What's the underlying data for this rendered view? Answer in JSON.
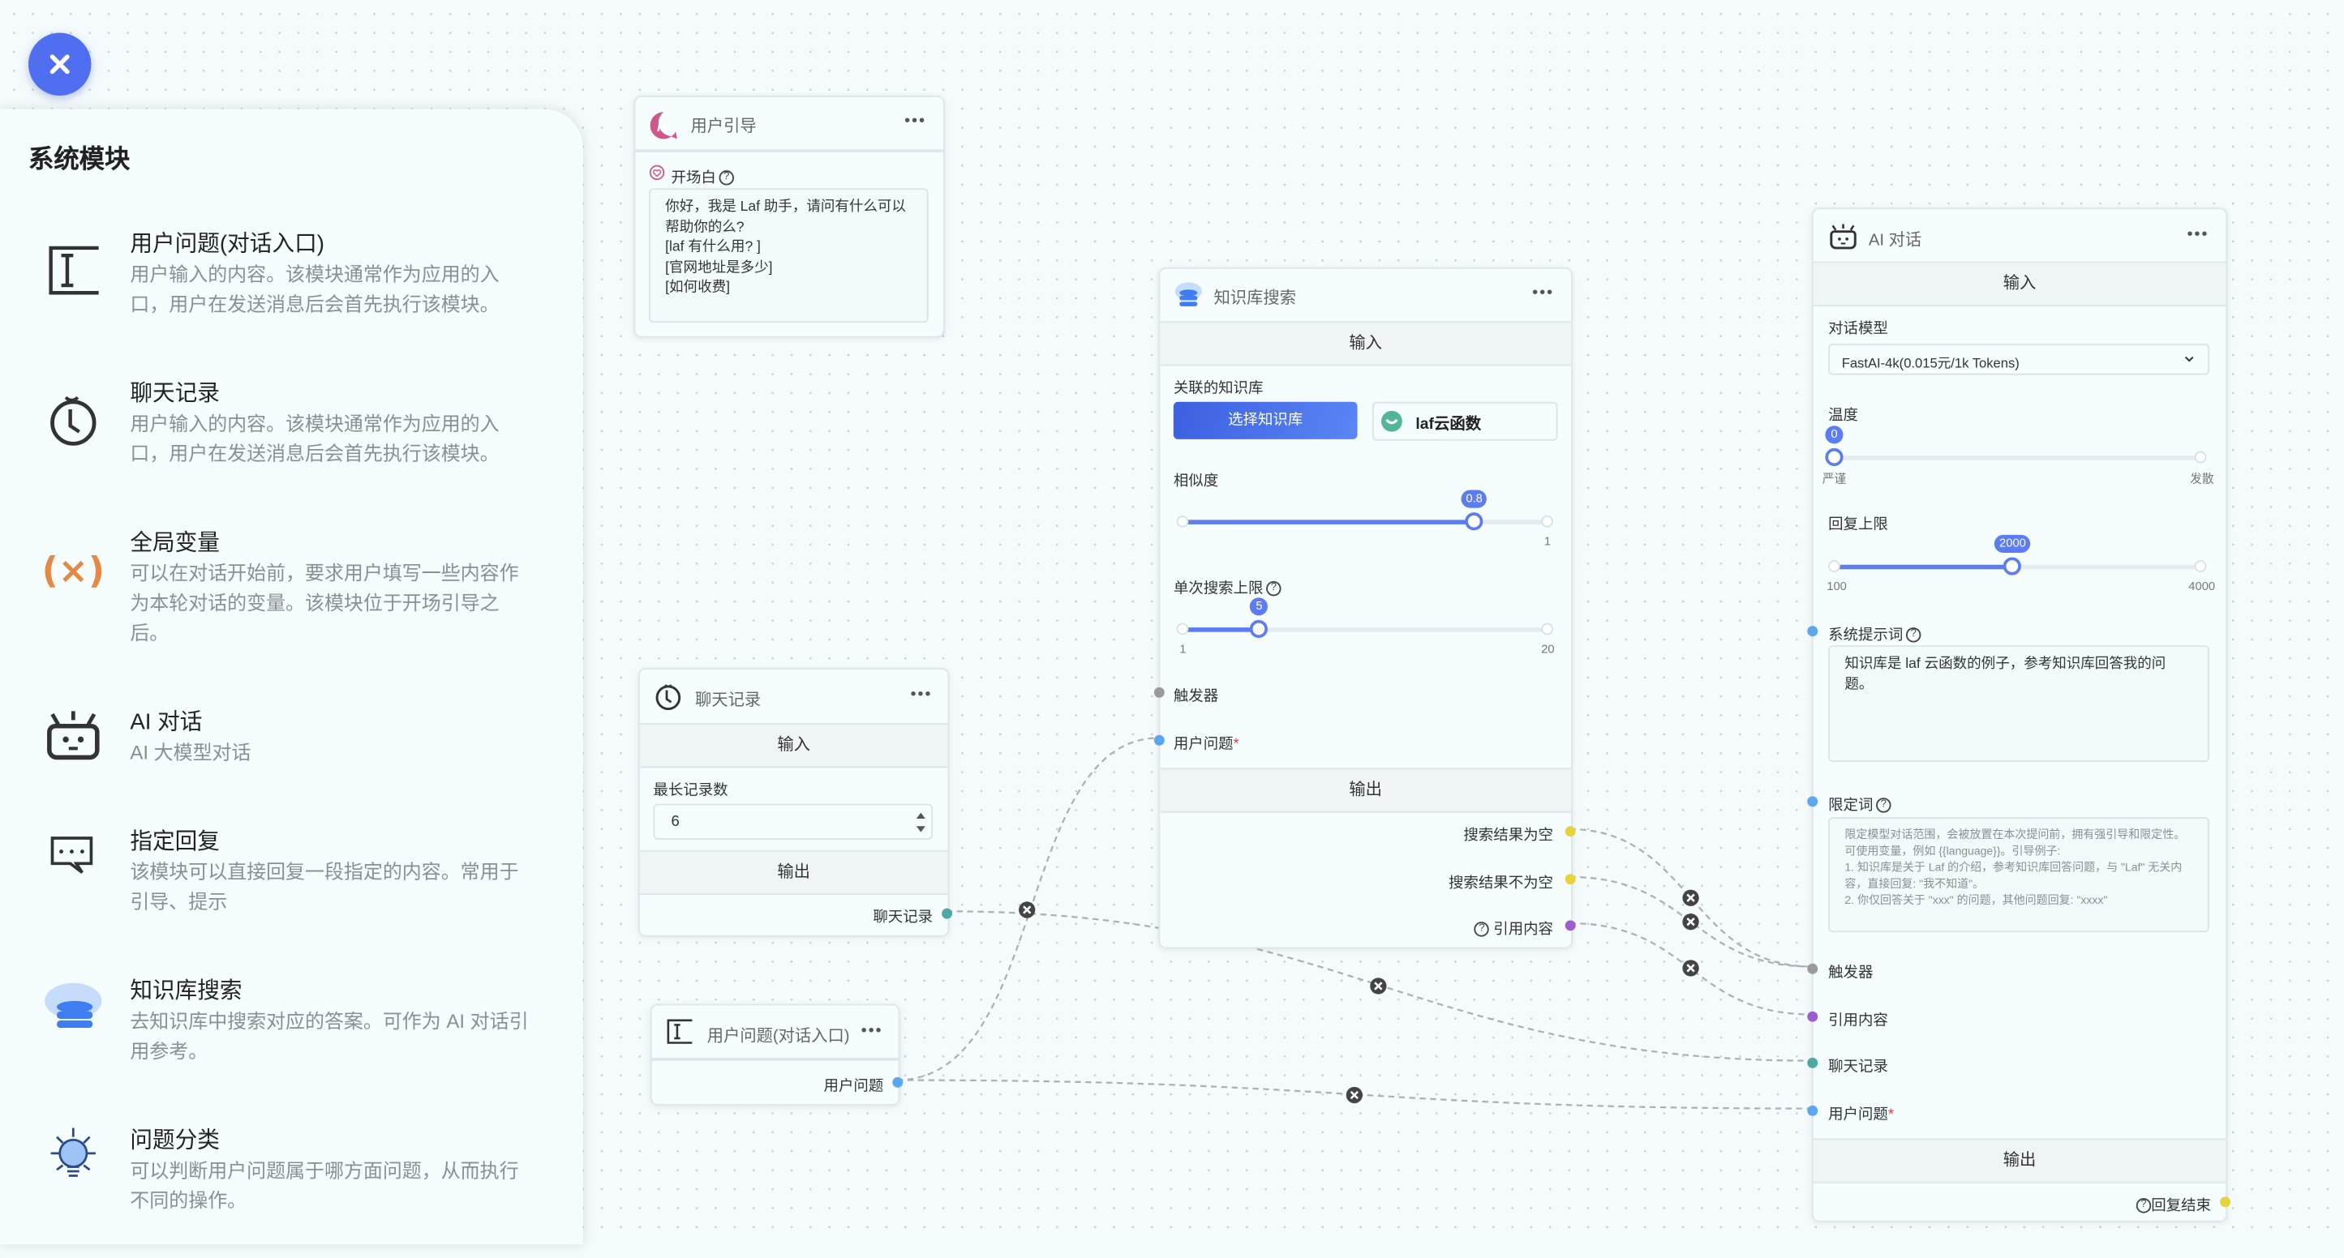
{
  "colors": {
    "accent": "#4f6ff0",
    "handle_trigger": "#9a9a9a",
    "handle_user_question": "#5aa6ef",
    "handle_chat_history": "#4ca9a2",
    "handle_quote": "#9d5ccf",
    "handle_result": "#e7d33b",
    "edge": "#a8b0b4"
  },
  "close_button": {
    "icon": "close-icon"
  },
  "sidebar": {
    "title": "系统模块",
    "items": [
      {
        "icon": "text-cursor-icon",
        "name": "用户问题(对话入口)",
        "desc": "用户输入的内容。该模块通常作为应用的入口，用户在发送消息后会首先执行该模块。"
      },
      {
        "icon": "clock-icon",
        "name": "聊天记录",
        "desc": "用户输入的内容。该模块通常作为应用的入口，用户在发送消息后会首先执行该模块。"
      },
      {
        "icon": "variable-icon",
        "name": "全局变量",
        "desc": "可以在对话开始前，要求用户填写一些内容作为本轮对话的变量。该模块位于开场引导之后。"
      },
      {
        "icon": "robot-icon",
        "name": "AI 对话",
        "desc": "AI 大模型对话"
      },
      {
        "icon": "chat-bubble-icon",
        "name": "指定回复",
        "desc": "该模块可以直接回复一段指定的内容。常用于引导、提示"
      },
      {
        "icon": "cloud-database-icon",
        "name": "知识库搜索",
        "desc": "去知识库中搜索对应的答案。可作为 AI 对话引用参考。"
      },
      {
        "icon": "lightbulb-icon",
        "name": "问题分类",
        "desc": "可以判断用户问题属于哪方面问题，从而执行不同的操作。"
      }
    ]
  },
  "nodes": {
    "guide": {
      "title": "用户引导",
      "more": "•••",
      "field_label": "开场白",
      "help": "?",
      "welcome_text": "你好，我是 Laf 助手，请问有什么可以帮助你的么?\n[laf 有什么用? ]\n[官网地址是多少]\n[如何收费]"
    },
    "history": {
      "title": "聊天记录",
      "more": "•••",
      "input_band": "输入",
      "max_label": "最长记录数",
      "max_value": "6",
      "output_band": "输出",
      "output_label": "聊天记录"
    },
    "user_question": {
      "title": "用户问题(对话入口)",
      "more": "•••",
      "output_label": "用户问题"
    },
    "kb": {
      "title": "知识库搜索",
      "more": "•••",
      "input_band": "输入",
      "linked_label": "关联的知识库",
      "select_button": "选择知识库",
      "selected_kb": "laf云函数",
      "similarity_label": "相似度",
      "similarity_value": "0.8",
      "similarity_max": "1",
      "similarity_fraction": 0.8,
      "limit_label": "单次搜索上限",
      "limit_value": "5",
      "limit_min": "1",
      "limit_max": "20",
      "help": "?",
      "trigger_label": "触发器",
      "user_question_label": "用户问题",
      "required": "*",
      "output_band": "输出",
      "outputs": [
        "搜索结果为空",
        "搜索结果不为空",
        "引用内容"
      ]
    },
    "ai": {
      "title": "AI 对话",
      "more": "•••",
      "input_band": "输入",
      "model_label": "对话模型",
      "model_value": "FastAI-4k(0.015元/1k Tokens)",
      "temp_label": "温度",
      "temp_value": "0",
      "temp_min_label": "严谨",
      "temp_max_label": "发散",
      "temp_fraction": 0,
      "max_label": "回复上限",
      "max_value": "2000",
      "max_min": "100",
      "max_max": "4000",
      "system_label": "系统提示词",
      "help": "?",
      "system_value": "知识库是 laf 云函数的例子，参考知识库回答我的问题。",
      "limit_label": "限定词",
      "limit_placeholder": "限定模型对话范围，会被放置在本次提问前，拥有强引导和限定性。可使用变量，例如 {{language}}。引导例子:\n1. 知识库是关于 Laf 的介绍，参考知识库回答问题，与 \"Laf\" 无关内容，直接回复: \"我不知道\"。\n2. 你仅回答关于 \"xxx\" 的问题，其他问题回复: \"xxxx\"",
      "inputs": [
        "触发器",
        "引用内容",
        "聊天记录",
        "用户问题"
      ],
      "required": "*",
      "output_band": "输出",
      "output_label": "回复结束"
    }
  }
}
